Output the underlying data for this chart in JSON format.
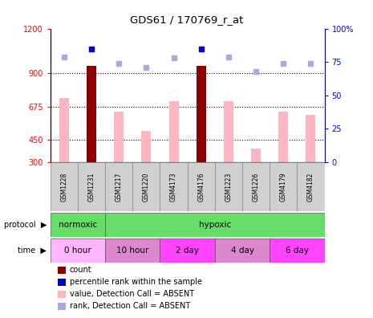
{
  "title": "GDS61 / 170769_r_at",
  "samples": [
    "GSM1228",
    "GSM1231",
    "GSM1217",
    "GSM1220",
    "GSM4173",
    "GSM4176",
    "GSM1223",
    "GSM1226",
    "GSM4179",
    "GSM4182"
  ],
  "count_values": [
    null,
    950,
    null,
    null,
    null,
    950,
    null,
    null,
    null,
    null
  ],
  "rank_pct": [
    79,
    85,
    74,
    71,
    78,
    85,
    79,
    68,
    74,
    74
  ],
  "absent_bar_values": [
    730,
    null,
    640,
    510,
    710,
    null,
    710,
    390,
    640,
    620
  ],
  "ylim_left": [
    300,
    1200
  ],
  "ylim_right": [
    0,
    100
  ],
  "yticks_left": [
    300,
    450,
    675,
    900,
    1200
  ],
  "yticks_right": [
    0,
    25,
    50,
    75,
    100
  ],
  "bar_color_dark": "#8B0000",
  "bar_color_light": "#FFB6C1",
  "dot_color_dark": "#0000CC",
  "dot_color_light": "#AAAADD",
  "protocol_groups": [
    {
      "label": "normoxic",
      "start": 0,
      "end": 2
    },
    {
      "label": "hypoxic",
      "start": 2,
      "end": 10
    }
  ],
  "time_groups": [
    {
      "label": "0 hour",
      "start": 0,
      "end": 2,
      "color": "#FFB6FF"
    },
    {
      "label": "10 hour",
      "start": 2,
      "end": 4,
      "color": "#DD88CC"
    },
    {
      "label": "2 day",
      "start": 4,
      "end": 6,
      "color": "#FF44FF"
    },
    {
      "label": "4 day",
      "start": 6,
      "end": 8,
      "color": "#DD88CC"
    },
    {
      "label": "6 day",
      "start": 8,
      "end": 10,
      "color": "#FF44FF"
    }
  ],
  "legend_items": [
    {
      "label": "count",
      "color": "#8B0000"
    },
    {
      "label": "percentile rank within the sample",
      "color": "#0000CC"
    },
    {
      "label": "value, Detection Call = ABSENT",
      "color": "#FFB6C1"
    },
    {
      "label": "rank, Detection Call = ABSENT",
      "color": "#AAAADD"
    }
  ],
  "gridlines": [
    900,
    675,
    450
  ],
  "bar_bottom": 300,
  "bar_width": 0.35
}
